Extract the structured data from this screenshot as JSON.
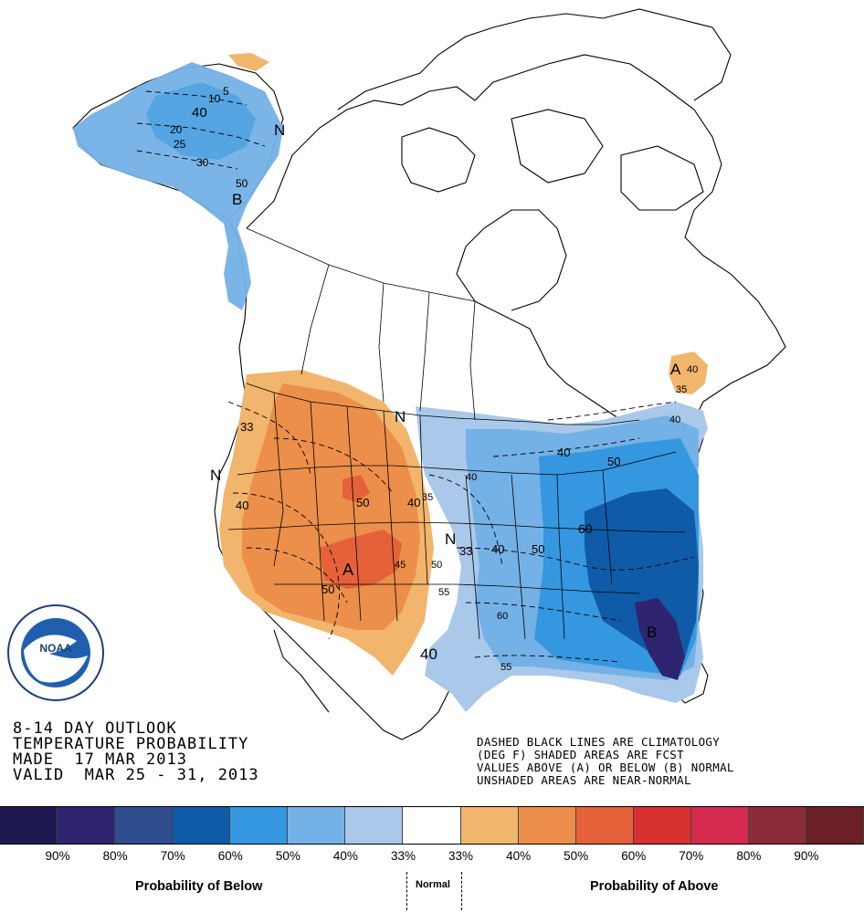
{
  "title_lines": [
    "8-14 DAY OUTLOOK",
    "TEMPERATURE PROBABILITY",
    "MADE  17 MAR 2013",
    "VALID  MAR 25 - 31, 2013"
  ],
  "note_lines": [
    "DASHED BLACK LINES ARE CLIMATOLOGY",
    "(DEG F) SHADED AREAS ARE FCST",
    "VALUES ABOVE (A) OR BELOW (B) NORMAL",
    "UNSHADED AREAS ARE NEAR-NORMAL"
  ],
  "legend": {
    "cells": [
      {
        "color": "#1e1a4f"
      },
      {
        "color": "#2e2470"
      },
      {
        "color": "#2f4c8c"
      },
      {
        "color": "#0f5ba8"
      },
      {
        "color": "#3597df"
      },
      {
        "color": "#74b1e6"
      },
      {
        "color": "#a9c8ea"
      },
      {
        "color": "#ffffff"
      },
      {
        "color": "#f2b56d"
      },
      {
        "color": "#ec8f4a"
      },
      {
        "color": "#e4613a"
      },
      {
        "color": "#d8312f"
      },
      {
        "color": "#d52b4e"
      },
      {
        "color": "#8b2a3a"
      },
      {
        "color": "#6b1f26"
      }
    ],
    "labels": [
      "90%",
      "80%",
      "70%",
      "60%",
      "50%",
      "40%",
      "33%",
      "33%",
      "40%",
      "50%",
      "60%",
      "70%",
      "80%",
      "90%"
    ],
    "below_caption": "Probability of Below",
    "normal_caption": "Normal",
    "above_caption": "Probability of Above"
  },
  "map_labels": {
    "alaska": [
      "5",
      "10",
      "40",
      "20",
      "25",
      "30",
      "50",
      "N",
      "B"
    ],
    "west": [
      "33",
      "N",
      "40",
      "50",
      "40",
      "A",
      "45",
      "50",
      "55",
      "50",
      "N",
      "N",
      "33"
    ],
    "east": [
      "40",
      "40",
      "50",
      "60",
      "40",
      "40",
      "50",
      "60",
      "B",
      "55",
      "35",
      "A",
      "40",
      "35",
      "40"
    ]
  },
  "logo": {
    "text": "NOAA",
    "ring_text": "NATIONAL OCEANIC AND ATMOSPHERIC ADMINISTRATION",
    "ring_bottom": "U.S. DEPARTMENT OF COMMERCE"
  }
}
